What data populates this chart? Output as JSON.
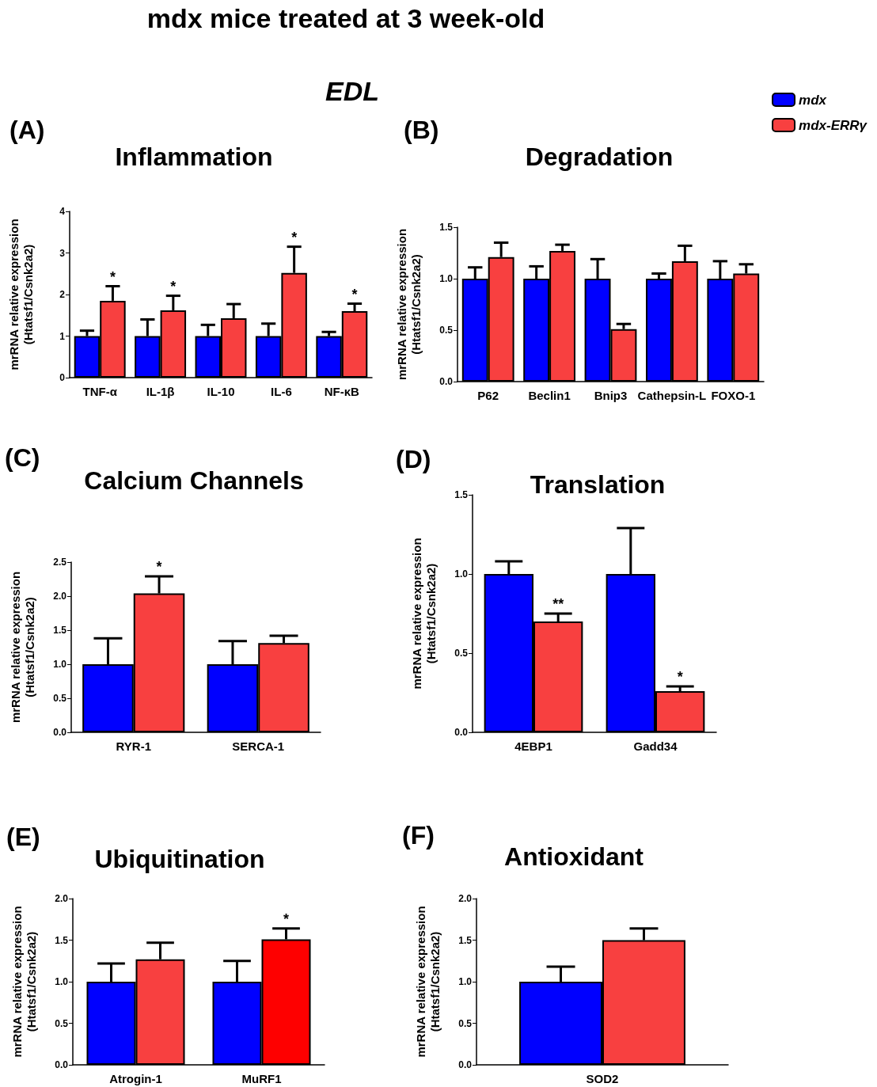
{
  "chart_data": [
    {
      "type": "bar",
      "title": "Inflammation",
      "ylabel": "mrRNA relative expression\n(Htatsf1/Csnk2a2)",
      "annotations": [
        "mdx mice treated at 3 week-old",
        "EDL",
        "(A)"
      ],
      "categories": [
        "TNF-α",
        "IL-1β",
        "IL-10",
        "IL-6",
        "NF-κB"
      ],
      "series": [
        {
          "color": "#0000ff",
          "values": [
            1,
            1,
            1,
            1,
            1
          ],
          "errors": [
            [
              1,
              1.13
            ],
            [
              1,
              1.4
            ],
            [
              1,
              1.27
            ],
            [
              1,
              1.3
            ],
            [
              1,
              1.1
            ]
          ]
        },
        {
          "color": "#f84040",
          "values": [
            1.85,
            1.62,
            1.43,
            2.52,
            1.6
          ],
          "errors": [
            [
              1.85,
              2.2
            ],
            [
              1.62,
              1.97
            ],
            [
              1.43,
              1.77
            ],
            [
              2.52,
              3.15
            ],
            [
              1.6,
              1.78
            ]
          ],
          "value_labels": [
            "*",
            "*",
            null,
            "*",
            "*"
          ]
        }
      ],
      "ylim": [
        0,
        4
      ],
      "yticks": [
        0,
        1,
        2,
        3,
        4
      ]
    },
    {
      "type": "bar",
      "title": "Degradation",
      "ylabel": "mrRNA relative expression\n(Htatsf1/Csnk2a2)",
      "annotations": [
        "(B)"
      ],
      "categories": [
        "P62",
        "Beclin1",
        "Bnip3",
        "Cathepsin-L",
        "FOXO-1"
      ],
      "series": [
        {
          "name": "mdx",
          "color": "#0000ff",
          "values": [
            1,
            1,
            1,
            1,
            1
          ],
          "errors": [
            [
              1,
              1.11
            ],
            [
              1,
              1.12
            ],
            [
              1,
              1.19
            ],
            [
              1,
              1.05
            ],
            [
              1,
              1.17
            ]
          ]
        },
        {
          "name": "mdx-ERRγ",
          "color": "#f84040",
          "values": [
            1.21,
            1.27,
            0.51,
            1.17,
            1.05
          ],
          "errors": [
            [
              1.21,
              1.35
            ],
            [
              1.27,
              1.33
            ],
            [
              0.51,
              0.56
            ],
            [
              1.17,
              1.32
            ],
            [
              1.05,
              1.14
            ]
          ]
        }
      ],
      "ylim": [
        0,
        1.5
      ],
      "yticks": [
        {
          "value": 0,
          "label": "0.0"
        },
        {
          "value": 0.5,
          "label": "0.5"
        },
        {
          "value": 1,
          "label": "1.0"
        },
        {
          "value": 1.5,
          "label": "1.5"
        }
      ],
      "legend": "top right"
    },
    {
      "type": "bar",
      "title": "Calcium Channels",
      "ylabel": "mrRNA relative expression\n(Htatsf1/Csnk2a2)",
      "annotations": [
        "(C)"
      ],
      "categories": [
        "RYR-1",
        "SERCA-1"
      ],
      "series": [
        {
          "color": "#0000ff",
          "values": [
            1,
            1
          ],
          "errors": [
            [
              1,
              1.38
            ],
            [
              1,
              1.34
            ]
          ]
        },
        {
          "color": "#f84040",
          "values": [
            2.04,
            1.31
          ],
          "errors": [
            [
              2.04,
              2.29
            ],
            [
              1.31,
              1.42
            ]
          ],
          "value_labels": [
            "*",
            null
          ]
        }
      ],
      "ylim": [
        0,
        2.5
      ],
      "yticks": [
        {
          "value": 0,
          "label": "0.0"
        },
        {
          "value": 0.5,
          "label": "0.5"
        },
        {
          "value": 1,
          "label": "1.0"
        },
        {
          "value": 1.5,
          "label": "1.5"
        },
        {
          "value": 2,
          "label": "2.0"
        },
        {
          "value": 2.5,
          "label": "2.5"
        }
      ]
    },
    {
      "type": "bar",
      "title": "Translation",
      "ylabel": "mrRNA relative expression\n(Htatsf1/Csnk2a2)",
      "annotations": [
        "(D)"
      ],
      "categories": [
        "4EBP1",
        "Gadd34"
      ],
      "series": [
        {
          "color": "#0000ff",
          "values": [
            1,
            1
          ],
          "errors": [
            [
              1,
              1.08
            ],
            [
              1,
              1.29
            ]
          ]
        },
        {
          "color": "#f84040",
          "values": [
            0.7,
            0.26
          ],
          "errors": [
            [
              0.7,
              0.75
            ],
            [
              0.26,
              0.29
            ]
          ],
          "value_labels": [
            "**",
            "*"
          ]
        }
      ],
      "ylim": [
        0,
        1.5
      ],
      "yticks": [
        {
          "value": 0,
          "label": "0.0"
        },
        {
          "value": 0.5,
          "label": "0.5"
        },
        {
          "value": 1,
          "label": "1.0"
        },
        {
          "value": 1.5,
          "label": "1.5"
        }
      ]
    },
    {
      "type": "bar",
      "title": "Ubiquitination",
      "ylabel": "mrRNA relative expression\n(Htatsf1/Csnk2a2)",
      "annotations": [
        "(E)"
      ],
      "categories": [
        "Atrogin-1",
        "MuRF1"
      ],
      "series": [
        {
          "color": "#0000ff",
          "values": [
            1,
            1
          ],
          "errors": [
            [
              1,
              1.22
            ],
            [
              1,
              1.25
            ]
          ]
        },
        {
          "color": "#f84040",
          "colors": [
            "#f84040",
            "#fe0000"
          ],
          "values": [
            1.27,
            1.51
          ],
          "errors": [
            [
              1.27,
              1.47
            ],
            [
              1.51,
              1.64
            ]
          ],
          "value_labels": [
            null,
            "*"
          ]
        }
      ],
      "ylim": [
        0,
        2
      ],
      "yticks": [
        {
          "value": 0,
          "label": "0.0"
        },
        {
          "value": 0.5,
          "label": "0.5"
        },
        {
          "value": 1,
          "label": "1.0"
        },
        {
          "value": 1.5,
          "label": "1.5"
        },
        {
          "value": 2,
          "label": "2.0"
        }
      ]
    },
    {
      "type": "bar",
      "title": "Antioxidant",
      "ylabel": "mrRNA relative expression\n(Htatsf1/Csnk2a2)",
      "annotations": [
        "(F)"
      ],
      "categories": [
        "SOD2"
      ],
      "series": [
        {
          "color": "#0000ff",
          "values": [
            1
          ],
          "errors": [
            [
              1,
              1.18
            ]
          ]
        },
        {
          "color": "#f84040",
          "values": [
            1.5
          ],
          "errors": [
            [
              1.5,
              1.64
            ]
          ]
        }
      ],
      "ylim": [
        0,
        2
      ],
      "yticks": [
        {
          "value": 0,
          "label": "0.0"
        },
        {
          "value": 0.5,
          "label": "0.5"
        },
        {
          "value": 1,
          "label": "1.0"
        },
        {
          "value": 1.5,
          "label": "1.5"
        },
        {
          "value": 2,
          "label": "2.0"
        }
      ]
    }
  ]
}
